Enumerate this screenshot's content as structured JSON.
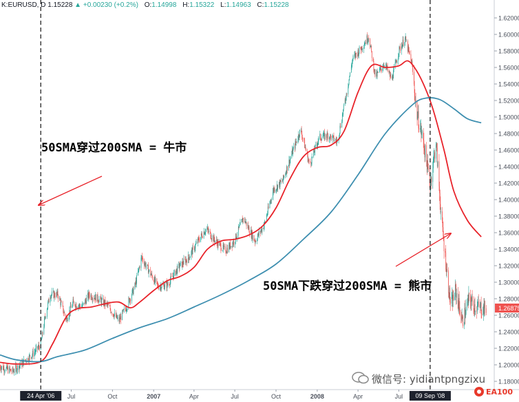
{
  "header": {
    "symbol": "K:EURUSD, D",
    "last": "1.15228",
    "change": "+0.00230 (+0.2%)",
    "o_label": "O:",
    "o": "1.14998",
    "h_label": "H:",
    "h": "1.15322",
    "l_label": "L:",
    "l": "1.14963",
    "c_label": "C:",
    "c": "1.15228"
  },
  "annotations": {
    "bull": "50SMA穿过200SMA = 牛市",
    "bear": "50SMA下跌穿过200SMA = 熊市"
  },
  "watermark": {
    "text": "微信号: yidiantpngzixu",
    "logo": "EA100"
  },
  "colors": {
    "sma50": "#e8232a",
    "sma200": "#3e8fb0",
    "up": "#26a69a",
    "down": "#ef5350",
    "price_tag": "#ef5350",
    "arrow": "#e8232a"
  },
  "chart_data": {
    "type": "candlestick",
    "title": "",
    "ylim": [
      1.17,
      1.63
    ],
    "y_ticks": [
      1.18,
      1.2,
      1.22,
      1.24,
      1.26,
      1.28,
      1.3,
      1.32,
      1.34,
      1.36,
      1.38,
      1.4,
      1.42,
      1.44,
      1.46,
      1.48,
      1.5,
      1.52,
      1.54,
      1.56,
      1.58,
      1.6,
      1.62
    ],
    "y_tick_labels": [
      "1.18000",
      "1.20000",
      "1.22000",
      "1.24000",
      "1.26000",
      "1.28000",
      "1.30000",
      "1.32000",
      "1.34000",
      "1.36000",
      "1.38000",
      "1.40000",
      "1.42000",
      "1.44000",
      "1.46000",
      "1.48000",
      "1.50000",
      "1.52000",
      "1.54000",
      "1.56000",
      "1.58000",
      "1.60000",
      "1.62000"
    ],
    "x_range": [
      "2006-01-23",
      "2009-01-30"
    ],
    "x_ticks": [
      {
        "date": "2006-04-24",
        "label": "24 Apr '06",
        "boxed": true
      },
      {
        "date": "2006-07-01",
        "label": "Jul"
      },
      {
        "date": "2006-10-01",
        "label": "Oct"
      },
      {
        "date": "2007-01-01",
        "label": "2007",
        "bold": true
      },
      {
        "date": "2007-04-01",
        "label": "Apr"
      },
      {
        "date": "2007-07-01",
        "label": "Jul"
      },
      {
        "date": "2007-10-01",
        "label": "Oct"
      },
      {
        "date": "2008-01-01",
        "label": "2008",
        "bold": true
      },
      {
        "date": "2008-04-01",
        "label": "Apr"
      },
      {
        "date": "2008-07-01",
        "label": "Jul"
      },
      {
        "date": "2008-09-09",
        "label": "09 Sep '08",
        "boxed": true
      }
    ],
    "current_price": 1.26875,
    "current_price_label": "1.26875",
    "vertical_lines": [
      "2006-04-24",
      "2008-09-09"
    ],
    "price_path": [
      [
        "2006-01-23",
        1.198
      ],
      [
        "2006-02-20",
        1.192
      ],
      [
        "2006-03-20",
        1.205
      ],
      [
        "2006-04-10",
        1.215
      ],
      [
        "2006-04-24",
        1.225
      ],
      [
        "2006-05-05",
        1.262
      ],
      [
        "2006-05-15",
        1.285
      ],
      [
        "2006-06-01",
        1.285
      ],
      [
        "2006-06-20",
        1.255
      ],
      [
        "2006-07-05",
        1.275
      ],
      [
        "2006-07-25",
        1.27
      ],
      [
        "2006-08-10",
        1.285
      ],
      [
        "2006-08-30",
        1.28
      ],
      [
        "2006-09-20",
        1.272
      ],
      [
        "2006-10-15",
        1.253
      ],
      [
        "2006-11-01",
        1.27
      ],
      [
        "2006-11-20",
        1.295
      ],
      [
        "2006-12-05",
        1.33
      ],
      [
        "2006-12-20",
        1.315
      ],
      [
        "2007-01-10",
        1.295
      ],
      [
        "2007-02-01",
        1.297
      ],
      [
        "2007-02-25",
        1.318
      ],
      [
        "2007-03-20",
        1.33
      ],
      [
        "2007-04-10",
        1.35
      ],
      [
        "2007-04-28",
        1.365
      ],
      [
        "2007-05-15",
        1.352
      ],
      [
        "2007-06-10",
        1.338
      ],
      [
        "2007-06-30",
        1.35
      ],
      [
        "2007-07-20",
        1.378
      ],
      [
        "2007-08-15",
        1.35
      ],
      [
        "2007-09-05",
        1.37
      ],
      [
        "2007-09-25",
        1.412
      ],
      [
        "2007-10-15",
        1.422
      ],
      [
        "2007-11-05",
        1.455
      ],
      [
        "2007-11-25",
        1.485
      ],
      [
        "2007-12-15",
        1.442
      ],
      [
        "2008-01-05",
        1.475
      ],
      [
        "2008-01-25",
        1.478
      ],
      [
        "2008-02-15",
        1.47
      ],
      [
        "2008-03-05",
        1.525
      ],
      [
        "2008-03-20",
        1.57
      ],
      [
        "2008-04-10",
        1.585
      ],
      [
        "2008-04-25",
        1.598
      ],
      [
        "2008-05-10",
        1.548
      ],
      [
        "2008-05-30",
        1.565
      ],
      [
        "2008-06-15",
        1.545
      ],
      [
        "2008-07-01",
        1.58
      ],
      [
        "2008-07-15",
        1.595
      ],
      [
        "2008-07-30",
        1.565
      ],
      [
        "2008-08-10",
        1.505
      ],
      [
        "2008-08-25",
        1.47
      ],
      [
        "2008-09-09",
        1.418
      ],
      [
        "2008-09-22",
        1.47
      ],
      [
        "2008-10-05",
        1.37
      ],
      [
        "2008-10-25",
        1.27
      ],
      [
        "2008-11-05",
        1.29
      ],
      [
        "2008-11-20",
        1.252
      ],
      [
        "2008-12-05",
        1.28
      ],
      [
        "2008-12-20",
        1.27
      ],
      [
        "2009-01-10",
        1.268
      ]
    ],
    "series": [
      {
        "name": "",
        "role": "sma50",
        "points": [
          [
            "2006-01-23",
            1.203
          ],
          [
            "2006-03-01",
            1.201
          ],
          [
            "2006-04-24",
            1.204
          ],
          [
            "2006-05-20",
            1.225
          ],
          [
            "2006-06-20",
            1.258
          ],
          [
            "2006-07-15",
            1.268
          ],
          [
            "2006-08-15",
            1.27
          ],
          [
            "2006-09-15",
            1.274
          ],
          [
            "2006-10-15",
            1.276
          ],
          [
            "2006-11-10",
            1.269
          ],
          [
            "2006-12-01",
            1.276
          ],
          [
            "2007-01-01",
            1.29
          ],
          [
            "2007-02-01",
            1.302
          ],
          [
            "2007-03-01",
            1.307
          ],
          [
            "2007-04-01",
            1.318
          ],
          [
            "2007-05-01",
            1.34
          ],
          [
            "2007-06-01",
            1.35
          ],
          [
            "2007-07-01",
            1.352
          ],
          [
            "2007-08-01",
            1.357
          ],
          [
            "2007-09-01",
            1.368
          ],
          [
            "2007-10-01",
            1.39
          ],
          [
            "2007-11-01",
            1.425
          ],
          [
            "2007-12-01",
            1.452
          ],
          [
            "2008-01-01",
            1.463
          ],
          [
            "2008-02-01",
            1.466
          ],
          [
            "2008-03-01",
            1.483
          ],
          [
            "2008-04-01",
            1.53
          ],
          [
            "2008-05-01",
            1.562
          ],
          [
            "2008-06-01",
            1.56
          ],
          [
            "2008-07-01",
            1.562
          ],
          [
            "2008-07-20",
            1.568
          ],
          [
            "2008-08-05",
            1.56
          ],
          [
            "2008-08-25",
            1.54
          ],
          [
            "2008-09-15",
            1.51
          ],
          [
            "2008-10-10",
            1.46
          ],
          [
            "2008-11-01",
            1.41
          ],
          [
            "2008-12-01",
            1.375
          ],
          [
            "2009-01-01",
            1.355
          ]
        ]
      },
      {
        "name": "",
        "role": "sma200",
        "points": [
          [
            "2006-01-23",
            1.212
          ],
          [
            "2006-03-01",
            1.206
          ],
          [
            "2006-04-24",
            1.204
          ],
          [
            "2006-06-01",
            1.21
          ],
          [
            "2006-08-01",
            1.218
          ],
          [
            "2006-10-01",
            1.232
          ],
          [
            "2006-12-01",
            1.245
          ],
          [
            "2007-02-01",
            1.256
          ],
          [
            "2007-04-01",
            1.27
          ],
          [
            "2007-06-01",
            1.285
          ],
          [
            "2007-08-01",
            1.302
          ],
          [
            "2007-10-01",
            1.322
          ],
          [
            "2007-12-01",
            1.352
          ],
          [
            "2008-02-01",
            1.385
          ],
          [
            "2008-04-01",
            1.43
          ],
          [
            "2008-06-01",
            1.48
          ],
          [
            "2008-08-01",
            1.515
          ],
          [
            "2008-09-01",
            1.523
          ],
          [
            "2008-10-01",
            1.521
          ],
          [
            "2008-11-01",
            1.51
          ],
          [
            "2008-12-01",
            1.498
          ],
          [
            "2009-01-01",
            1.493
          ]
        ]
      }
    ]
  }
}
